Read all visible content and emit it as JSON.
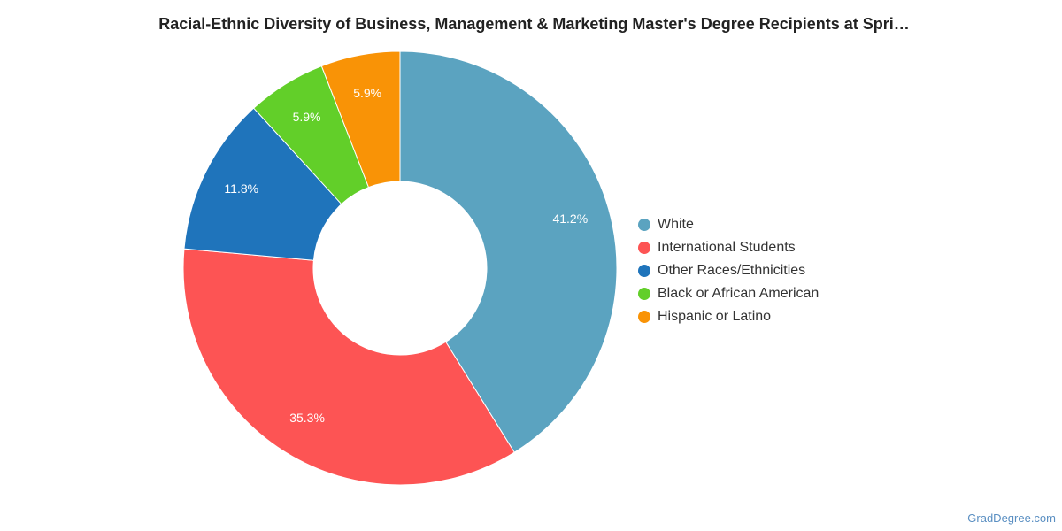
{
  "title": "Racial-Ethnic Diversity of Business, Management & Marketing Master's Degree Recipients at Spri…",
  "watermark": "GradDegree.com",
  "chart_data": {
    "type": "pie",
    "subtype": "donut",
    "title": "Racial-Ethnic Diversity of Business, Management & Marketing Master's Degree Recipients at Spri…",
    "legend_position": "right",
    "slices": [
      {
        "name": "White",
        "value": 41.2,
        "label": "41.2%",
        "color": "#5ba3c0"
      },
      {
        "name": "International Students",
        "value": 35.3,
        "label": "35.3%",
        "color": "#fd5454"
      },
      {
        "name": "Other Races/Ethnicities",
        "value": 11.8,
        "label": "11.8%",
        "color": "#1f74bb"
      },
      {
        "name": "Black or African American",
        "value": 5.9,
        "label": "5.9%",
        "color": "#62cf29"
      },
      {
        "name": "Hispanic or Latino",
        "value": 5.9,
        "label": "5.9%",
        "color": "#f99306"
      }
    ]
  }
}
